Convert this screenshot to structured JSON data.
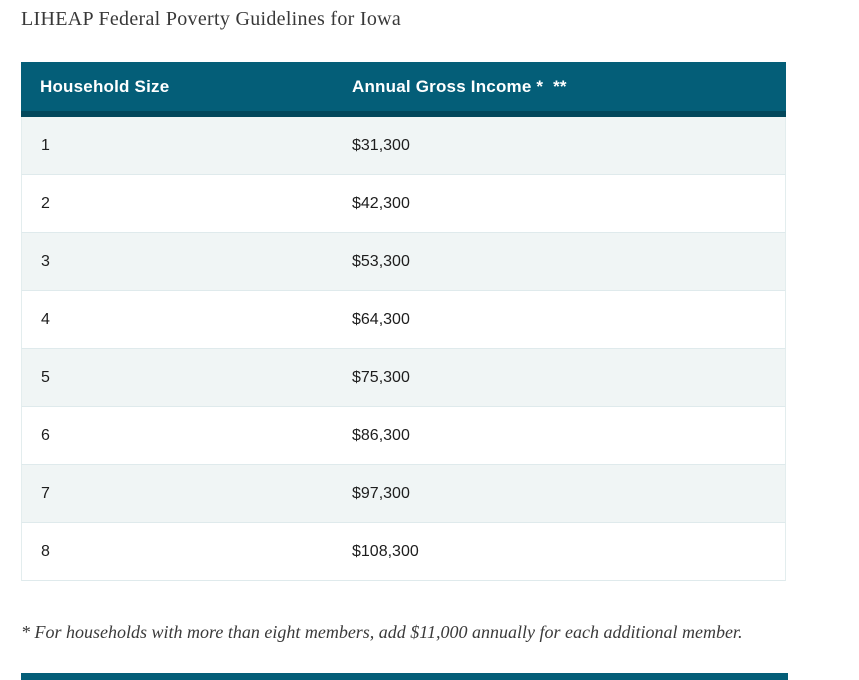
{
  "page": {
    "title": "LIHEAP Federal Poverty Guidelines for Iowa"
  },
  "table": {
    "columns": [
      {
        "label": "Household Size"
      },
      {
        "label": "Annual Gross Income *  **"
      }
    ],
    "rows": [
      {
        "size": "1",
        "income": "$31,300"
      },
      {
        "size": "2",
        "income": "$42,300"
      },
      {
        "size": "3",
        "income": "$53,300"
      },
      {
        "size": "4",
        "income": "$64,300"
      },
      {
        "size": "5",
        "income": "$75,300"
      },
      {
        "size": "6",
        "income": "$86,300"
      },
      {
        "size": "7",
        "income": "$97,300"
      },
      {
        "size": "8",
        "income": "$108,300"
      }
    ]
  },
  "footnote": "* For households with more than eight members, add $11,000 annually for each additional member.",
  "colors": {
    "header_background": "#045E78",
    "header_lower_strip": "#03485C",
    "header_text": "#FFFFFF",
    "row_alt_background": "#F0F5F5",
    "row_background": "#FFFFFF",
    "row_border": "#DFEAEC",
    "cell_text": "#1D1D1D",
    "title_text": "#383838",
    "footnote_text": "#3A3A3A",
    "bottom_bar": "#045E78"
  }
}
